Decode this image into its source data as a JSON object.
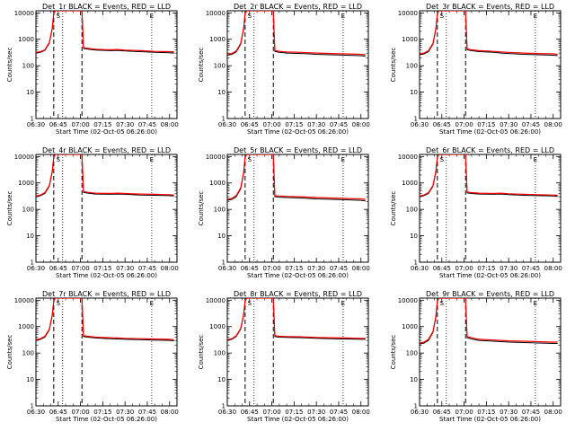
{
  "chart_data": {
    "type": "line",
    "xlabel": "Start Time (02-Oct-05 06:26:00)",
    "ylabel": "Counts/sec",
    "x_ticks": [
      "06:30",
      "06:45",
      "07:00",
      "07:15",
      "07:30",
      "07:45",
      "08:00"
    ],
    "x_tick_minutes": [
      0,
      15,
      30,
      45,
      60,
      75,
      90
    ],
    "xlim_minutes": [
      0,
      95
    ],
    "y_scale": "log",
    "ylim": [
      1,
      12000
    ],
    "y_ticks": [
      "1",
      "10",
      "100",
      "1000",
      "10000"
    ],
    "y_tick_values": [
      1,
      10,
      100,
      1000,
      10000
    ],
    "marker_labels": [
      "S",
      "E"
    ],
    "marker_label_minutes": [
      15,
      78
    ],
    "dashed_lines_minutes": [
      12,
      31
    ],
    "dotted_lines_minutes": [
      18,
      78
    ],
    "legend_text": "BLACK = Events, RED = LLD",
    "series_colors": {
      "events": "#000000",
      "lld": "#ff0000"
    },
    "panels": [
      {
        "title": "Det_1r BLACK = Events, RED = LLD",
        "series": [
          {
            "name": "Events",
            "x": [
              0,
              3,
              6,
              9,
              11,
              12,
              13,
              14,
              30,
              31,
              32,
              35,
              40,
              50,
              55,
              60,
              70,
              80,
              90,
              93
            ],
            "y": [
              300,
              320,
              380,
              700,
              2500,
              9000,
              12000,
              12000,
              12000,
              12000,
              450,
              420,
              390,
              370,
              380,
              360,
              340,
              320,
              310,
              300
            ]
          },
          {
            "name": "LLD",
            "x": [
              0,
              3,
              6,
              9,
              11,
              12,
              13,
              14,
              30,
              31,
              32,
              35,
              40,
              50,
              55,
              60,
              70,
              80,
              90,
              93
            ],
            "y": [
              320,
              340,
              400,
              750,
              2700,
              9500,
              12000,
              12000,
              12000,
              12000,
              480,
              450,
              420,
              400,
              410,
              390,
              370,
              350,
              340,
              330
            ]
          }
        ]
      },
      {
        "title": "Det_2r BLACK = Events, RED = LLD",
        "series": [
          {
            "name": "Events",
            "x": [
              0,
              3,
              6,
              9,
              11,
              12,
              13,
              14,
              30,
              31,
              32,
              35,
              40,
              50,
              55,
              60,
              70,
              80,
              90,
              93
            ],
            "y": [
              250,
              270,
              330,
              650,
              2400,
              9000,
              12000,
              12000,
              12000,
              12000,
              350,
              320,
              300,
              290,
              280,
              270,
              260,
              250,
              240,
              230
            ]
          },
          {
            "name": "LLD",
            "x": [
              0,
              3,
              6,
              9,
              11,
              12,
              13,
              14,
              30,
              31,
              32,
              35,
              40,
              50,
              55,
              60,
              70,
              80,
              90,
              93
            ],
            "y": [
              270,
              290,
              360,
              700,
              2600,
              9500,
              12000,
              12000,
              12000,
              12000,
              380,
              350,
              330,
              320,
              310,
              300,
              290,
              280,
              270,
              260
            ]
          }
        ]
      },
      {
        "title": "Det_3r BLACK = Events, RED = LLD",
        "series": [
          {
            "name": "Events",
            "x": [
              0,
              3,
              6,
              9,
              11,
              12,
              13,
              14,
              30,
              31,
              32,
              35,
              40,
              50,
              55,
              60,
              70,
              80,
              90,
              93
            ],
            "y": [
              260,
              280,
              340,
              650,
              2400,
              9000,
              12000,
              12000,
              12000,
              12000,
              400,
              370,
              340,
              320,
              300,
              290,
              270,
              260,
              250,
              240
            ]
          },
          {
            "name": "LLD",
            "x": [
              0,
              3,
              6,
              9,
              11,
              12,
              13,
              14,
              30,
              31,
              32,
              35,
              40,
              50,
              55,
              60,
              70,
              80,
              90,
              93
            ],
            "y": [
              280,
              300,
              370,
              700,
              2600,
              9500,
              12000,
              12000,
              12000,
              12000,
              430,
              400,
              370,
              350,
              330,
              320,
              300,
              290,
              280,
              270
            ]
          }
        ]
      },
      {
        "title": "Det_4r BLACK = Events, RED = LLD",
        "series": [
          {
            "name": "Events",
            "x": [
              0,
              3,
              6,
              9,
              11,
              12,
              13,
              14,
              30,
              31,
              32,
              35,
              40,
              50,
              55,
              60,
              70,
              80,
              90,
              93
            ],
            "y": [
              300,
              330,
              400,
              750,
              2600,
              9000,
              12000,
              12000,
              12000,
              12000,
              440,
              410,
              380,
              370,
              380,
              370,
              350,
              340,
              330,
              320
            ]
          },
          {
            "name": "LLD",
            "x": [
              0,
              3,
              6,
              9,
              11,
              12,
              13,
              14,
              30,
              31,
              32,
              35,
              40,
              50,
              55,
              60,
              70,
              80,
              90,
              93
            ],
            "y": [
              320,
              350,
              430,
              800,
              2800,
              9500,
              12000,
              12000,
              12000,
              12000,
              470,
              440,
              410,
              400,
              410,
              400,
              380,
              370,
              360,
              350
            ]
          }
        ]
      },
      {
        "title": "Det_5r BLACK = Events, RED = LLD",
        "series": [
          {
            "name": "Events",
            "x": [
              0,
              3,
              6,
              9,
              11,
              12,
              13,
              14,
              30,
              31,
              32,
              35,
              40,
              50,
              55,
              60,
              70,
              80,
              90,
              93
            ],
            "y": [
              220,
              240,
              300,
              600,
              2300,
              9000,
              12000,
              12000,
              12000,
              12000,
              300,
              290,
              280,
              270,
              260,
              250,
              240,
              230,
              220,
              210
            ]
          },
          {
            "name": "LLD",
            "x": [
              0,
              3,
              6,
              9,
              11,
              12,
              13,
              14,
              30,
              31,
              32,
              35,
              40,
              50,
              55,
              60,
              70,
              80,
              90,
              93
            ],
            "y": [
              240,
              260,
              330,
              650,
              2500,
              9500,
              12000,
              12000,
              12000,
              12000,
              330,
              320,
              310,
              300,
              290,
              280,
              270,
              260,
              250,
              240
            ]
          }
        ]
      },
      {
        "title": "Det_6r BLACK = Events, RED = LLD",
        "series": [
          {
            "name": "Events",
            "x": [
              0,
              3,
              6,
              9,
              11,
              12,
              13,
              14,
              30,
              31,
              32,
              35,
              40,
              50,
              55,
              60,
              70,
              80,
              90,
              93
            ],
            "y": [
              300,
              330,
              400,
              750,
              2600,
              9000,
              12000,
              12000,
              12000,
              12000,
              420,
              400,
              380,
              370,
              380,
              360,
              340,
              330,
              320,
              310
            ]
          },
          {
            "name": "LLD",
            "x": [
              0,
              3,
              6,
              9,
              11,
              12,
              13,
              14,
              30,
              31,
              32,
              35,
              40,
              50,
              55,
              60,
              70,
              80,
              90,
              93
            ],
            "y": [
              320,
              350,
              430,
              800,
              2800,
              9500,
              12000,
              12000,
              12000,
              12000,
              450,
              430,
              410,
              400,
              410,
              390,
              370,
              360,
              350,
              340
            ]
          }
        ]
      },
      {
        "title": "Det_7r BLACK = Events, RED = LLD",
        "series": [
          {
            "name": "Events",
            "x": [
              0,
              3,
              6,
              9,
              11,
              12,
              13,
              14,
              30,
              31,
              32,
              35,
              40,
              50,
              55,
              60,
              70,
              80,
              90,
              93
            ],
            "y": [
              300,
              330,
              400,
              750,
              2600,
              9000,
              12000,
              12000,
              12000,
              12000,
              420,
              400,
              370,
              350,
              340,
              330,
              320,
              310,
              300,
              290
            ]
          },
          {
            "name": "LLD",
            "x": [
              0,
              3,
              6,
              9,
              11,
              12,
              13,
              14,
              30,
              31,
              32,
              35,
              40,
              50,
              55,
              60,
              70,
              80,
              90,
              93
            ],
            "y": [
              320,
              350,
              430,
              800,
              2800,
              9500,
              12000,
              12000,
              12000,
              12000,
              450,
              430,
              400,
              380,
              370,
              360,
              350,
              340,
              330,
              320
            ]
          }
        ]
      },
      {
        "title": "Det_8r BLACK = Events, RED = LLD",
        "series": [
          {
            "name": "Events",
            "x": [
              0,
              3,
              6,
              9,
              11,
              12,
              13,
              14,
              30,
              31,
              32,
              35,
              40,
              50,
              55,
              60,
              70,
              80,
              90,
              93
            ],
            "y": [
              300,
              330,
              420,
              800,
              2700,
              9000,
              12000,
              12000,
              12000,
              12000,
              420,
              400,
              390,
              380,
              370,
              360,
              350,
              340,
              330,
              330
            ]
          },
          {
            "name": "LLD",
            "x": [
              0,
              3,
              6,
              9,
              11,
              12,
              13,
              14,
              30,
              31,
              32,
              35,
              40,
              50,
              55,
              60,
              70,
              80,
              90,
              93
            ],
            "y": [
              320,
              350,
              450,
              850,
              2900,
              9500,
              12000,
              12000,
              12000,
              12000,
              450,
              430,
              420,
              410,
              400,
              390,
              380,
              370,
              360,
              360
            ]
          }
        ]
      },
      {
        "title": "Det_9r BLACK = Events, RED = LLD",
        "series": [
          {
            "name": "Events",
            "x": [
              0,
              3,
              6,
              9,
              11,
              12,
              13,
              14,
              30,
              31,
              32,
              35,
              40,
              50,
              55,
              60,
              70,
              80,
              90,
              93
            ],
            "y": [
              220,
              240,
              300,
              600,
              2300,
              9000,
              12000,
              12000,
              12000,
              12000,
              380,
              340,
              300,
              280,
              270,
              260,
              250,
              240,
              230,
              230
            ]
          },
          {
            "name": "LLD",
            "x": [
              0,
              3,
              6,
              9,
              11,
              12,
              13,
              14,
              30,
              31,
              32,
              35,
              40,
              50,
              55,
              60,
              70,
              80,
              90,
              93
            ],
            "y": [
              240,
              260,
              330,
              650,
              2500,
              9500,
              12000,
              12000,
              12000,
              12000,
              420,
              380,
              330,
              310,
              300,
              290,
              280,
              270,
              260,
              260
            ]
          }
        ]
      }
    ]
  }
}
